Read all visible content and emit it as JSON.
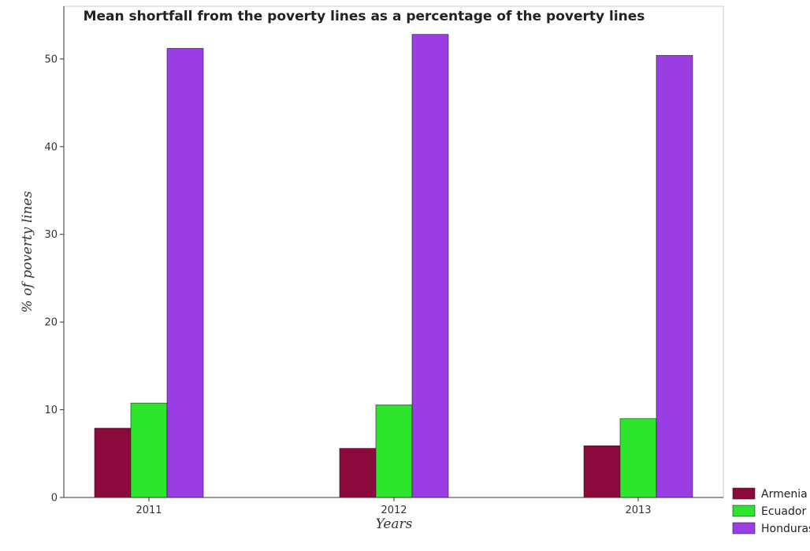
{
  "chart_data": {
    "type": "bar",
    "title": "Mean shortfall from the poverty lines as a percentage of the poverty lines",
    "xlabel": "Years",
    "ylabel": "% of poverty lines",
    "categories": [
      "2011",
      "2012",
      "2013"
    ],
    "series": [
      {
        "name": "Armenia",
        "color": "#8b0a3b",
        "values": [
          7.9,
          5.6,
          5.9
        ]
      },
      {
        "name": "Ecuador",
        "color": "#2ee52e",
        "values": [
          10.76,
          10.55,
          8.99
        ]
      },
      {
        "name": "Honduras",
        "color": "#9a3de3",
        "values": [
          51.2,
          52.8,
          50.4
        ]
      }
    ],
    "ylim": [
      0,
      56
    ],
    "yticks": [
      0,
      10,
      20,
      30,
      40,
      50
    ],
    "grid": false,
    "legend": "bottom-right"
  }
}
